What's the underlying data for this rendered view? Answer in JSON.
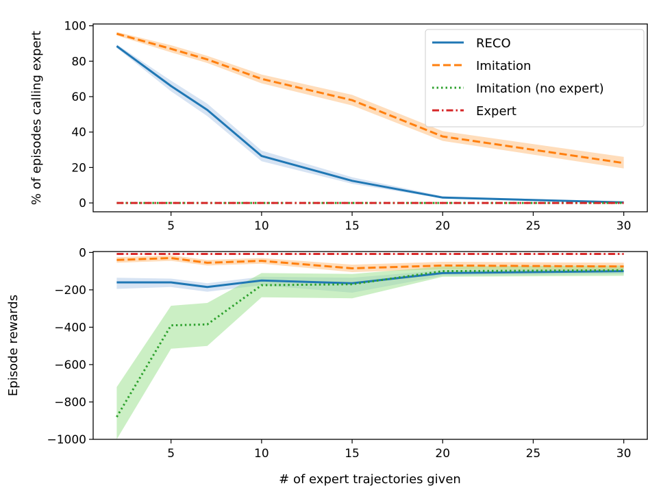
{
  "chart_data": [
    {
      "type": "line",
      "xlabel": "",
      "ylabel": "% of episodes calling expert",
      "xlim": [
        0.7,
        31.3
      ],
      "ylim": [
        -5,
        101
      ],
      "xticks": [
        5,
        10,
        15,
        20,
        25,
        30
      ],
      "yticks": [
        0,
        20,
        40,
        60,
        80,
        100
      ],
      "grid": false,
      "legend_position": "top-right",
      "series": [
        {
          "name": "RECO",
          "color": "#1f77b4",
          "style": "solid",
          "band_color": "#aec7e8",
          "x": [
            2,
            5,
            7,
            10,
            15,
            20,
            30
          ],
          "y": [
            88.5,
            66,
            52.5,
            26.5,
            12.5,
            3,
            0.3
          ],
          "lower": [
            87.5,
            63,
            49,
            23.5,
            10.8,
            2.5,
            0.1
          ],
          "upper": [
            89.5,
            69,
            56,
            29.5,
            14.5,
            3.8,
            0.6
          ]
        },
        {
          "name": "Imitation",
          "color": "#ff7f0e",
          "style": "dashed",
          "band_color": "#ffbb78",
          "x": [
            2,
            5,
            7,
            10,
            15,
            20,
            30
          ],
          "y": [
            95.5,
            87,
            81,
            70,
            58,
            37.5,
            22.5
          ],
          "lower": [
            94.5,
            85,
            79,
            67.5,
            55,
            35,
            19.5
          ],
          "upper": [
            96.5,
            89,
            83,
            72.5,
            61,
            40.5,
            26
          ]
        },
        {
          "name": "Imitation (no expert)",
          "color": "#2ca02c",
          "style": "dotted",
          "band_color": "#98df8a",
          "x": [
            2,
            5,
            7,
            10,
            15,
            20,
            30
          ],
          "y": [
            0,
            0,
            0,
            0,
            0,
            0,
            0
          ],
          "lower": [
            0,
            0,
            0,
            0,
            0,
            0,
            0
          ],
          "upper": [
            0,
            0,
            0,
            0,
            0,
            0,
            0
          ]
        },
        {
          "name": "Expert",
          "color": "#d62728",
          "style": "dashdot",
          "band_color": "#ff9896",
          "x": [
            2,
            5,
            7,
            10,
            15,
            20,
            30
          ],
          "y": [
            0,
            0,
            0,
            0,
            0,
            0,
            0
          ],
          "lower": [
            0,
            0,
            0,
            0,
            0,
            0,
            0
          ],
          "upper": [
            0,
            0,
            0,
            0,
            0,
            0,
            0
          ]
        }
      ]
    },
    {
      "type": "line",
      "xlabel": "# of expert trajectories given",
      "ylabel": "Episode rewards",
      "xlim": [
        0.7,
        31.3
      ],
      "ylim": [
        -1000,
        5
      ],
      "xticks": [
        5,
        10,
        15,
        20,
        25,
        30
      ],
      "yticks": [
        0,
        -200,
        -400,
        -600,
        -800,
        -1000
      ],
      "ytick_labels": [
        "0",
        "−200",
        "−400",
        "−600",
        "−800",
        "−1000"
      ],
      "grid": false,
      "series": [
        {
          "name": "RECO",
          "color": "#1f77b4",
          "style": "solid",
          "band_color": "#aec7e8",
          "x": [
            2,
            5,
            7,
            10,
            15,
            20,
            30
          ],
          "y": [
            -160,
            -160,
            -185,
            -150,
            -165,
            -110,
            -100
          ],
          "lower": [
            -195,
            -185,
            -210,
            -175,
            -215,
            -125,
            -115
          ],
          "upper": [
            -135,
            -140,
            -165,
            -130,
            -135,
            -95,
            -85
          ]
        },
        {
          "name": "Imitation",
          "color": "#ff7f0e",
          "style": "dashed",
          "band_color": "#ffbb78",
          "x": [
            2,
            5,
            7,
            10,
            15,
            20,
            30
          ],
          "y": [
            -40,
            -30,
            -55,
            -45,
            -85,
            -70,
            -75
          ],
          "lower": [
            -55,
            -45,
            -70,
            -60,
            -105,
            -90,
            -95
          ],
          "upper": [
            -25,
            -15,
            -40,
            -30,
            -65,
            -50,
            -55
          ]
        },
        {
          "name": "Imitation (no expert)",
          "color": "#2ca02c",
          "style": "dotted",
          "band_color": "#98df8a",
          "x": [
            2,
            5,
            7,
            10,
            15,
            20,
            30
          ],
          "y": [
            -880,
            -390,
            -385,
            -175,
            -170,
            -100,
            -95
          ],
          "lower": [
            -1000,
            -515,
            -500,
            -240,
            -245,
            -130,
            -125
          ],
          "upper": [
            -720,
            -285,
            -270,
            -110,
            -115,
            -75,
            -70
          ]
        },
        {
          "name": "Expert",
          "color": "#d62728",
          "style": "dashdot",
          "band_color": "#ff9896",
          "x": [
            2,
            5,
            7,
            10,
            15,
            20,
            30
          ],
          "y": [
            -8,
            -8,
            -8,
            -8,
            -8,
            -8,
            -8
          ],
          "lower": [
            -10,
            -10,
            -10,
            -10,
            -10,
            -10,
            -10
          ],
          "upper": [
            -6,
            -6,
            -6,
            -6,
            -6,
            -6,
            -6
          ]
        }
      ]
    }
  ]
}
